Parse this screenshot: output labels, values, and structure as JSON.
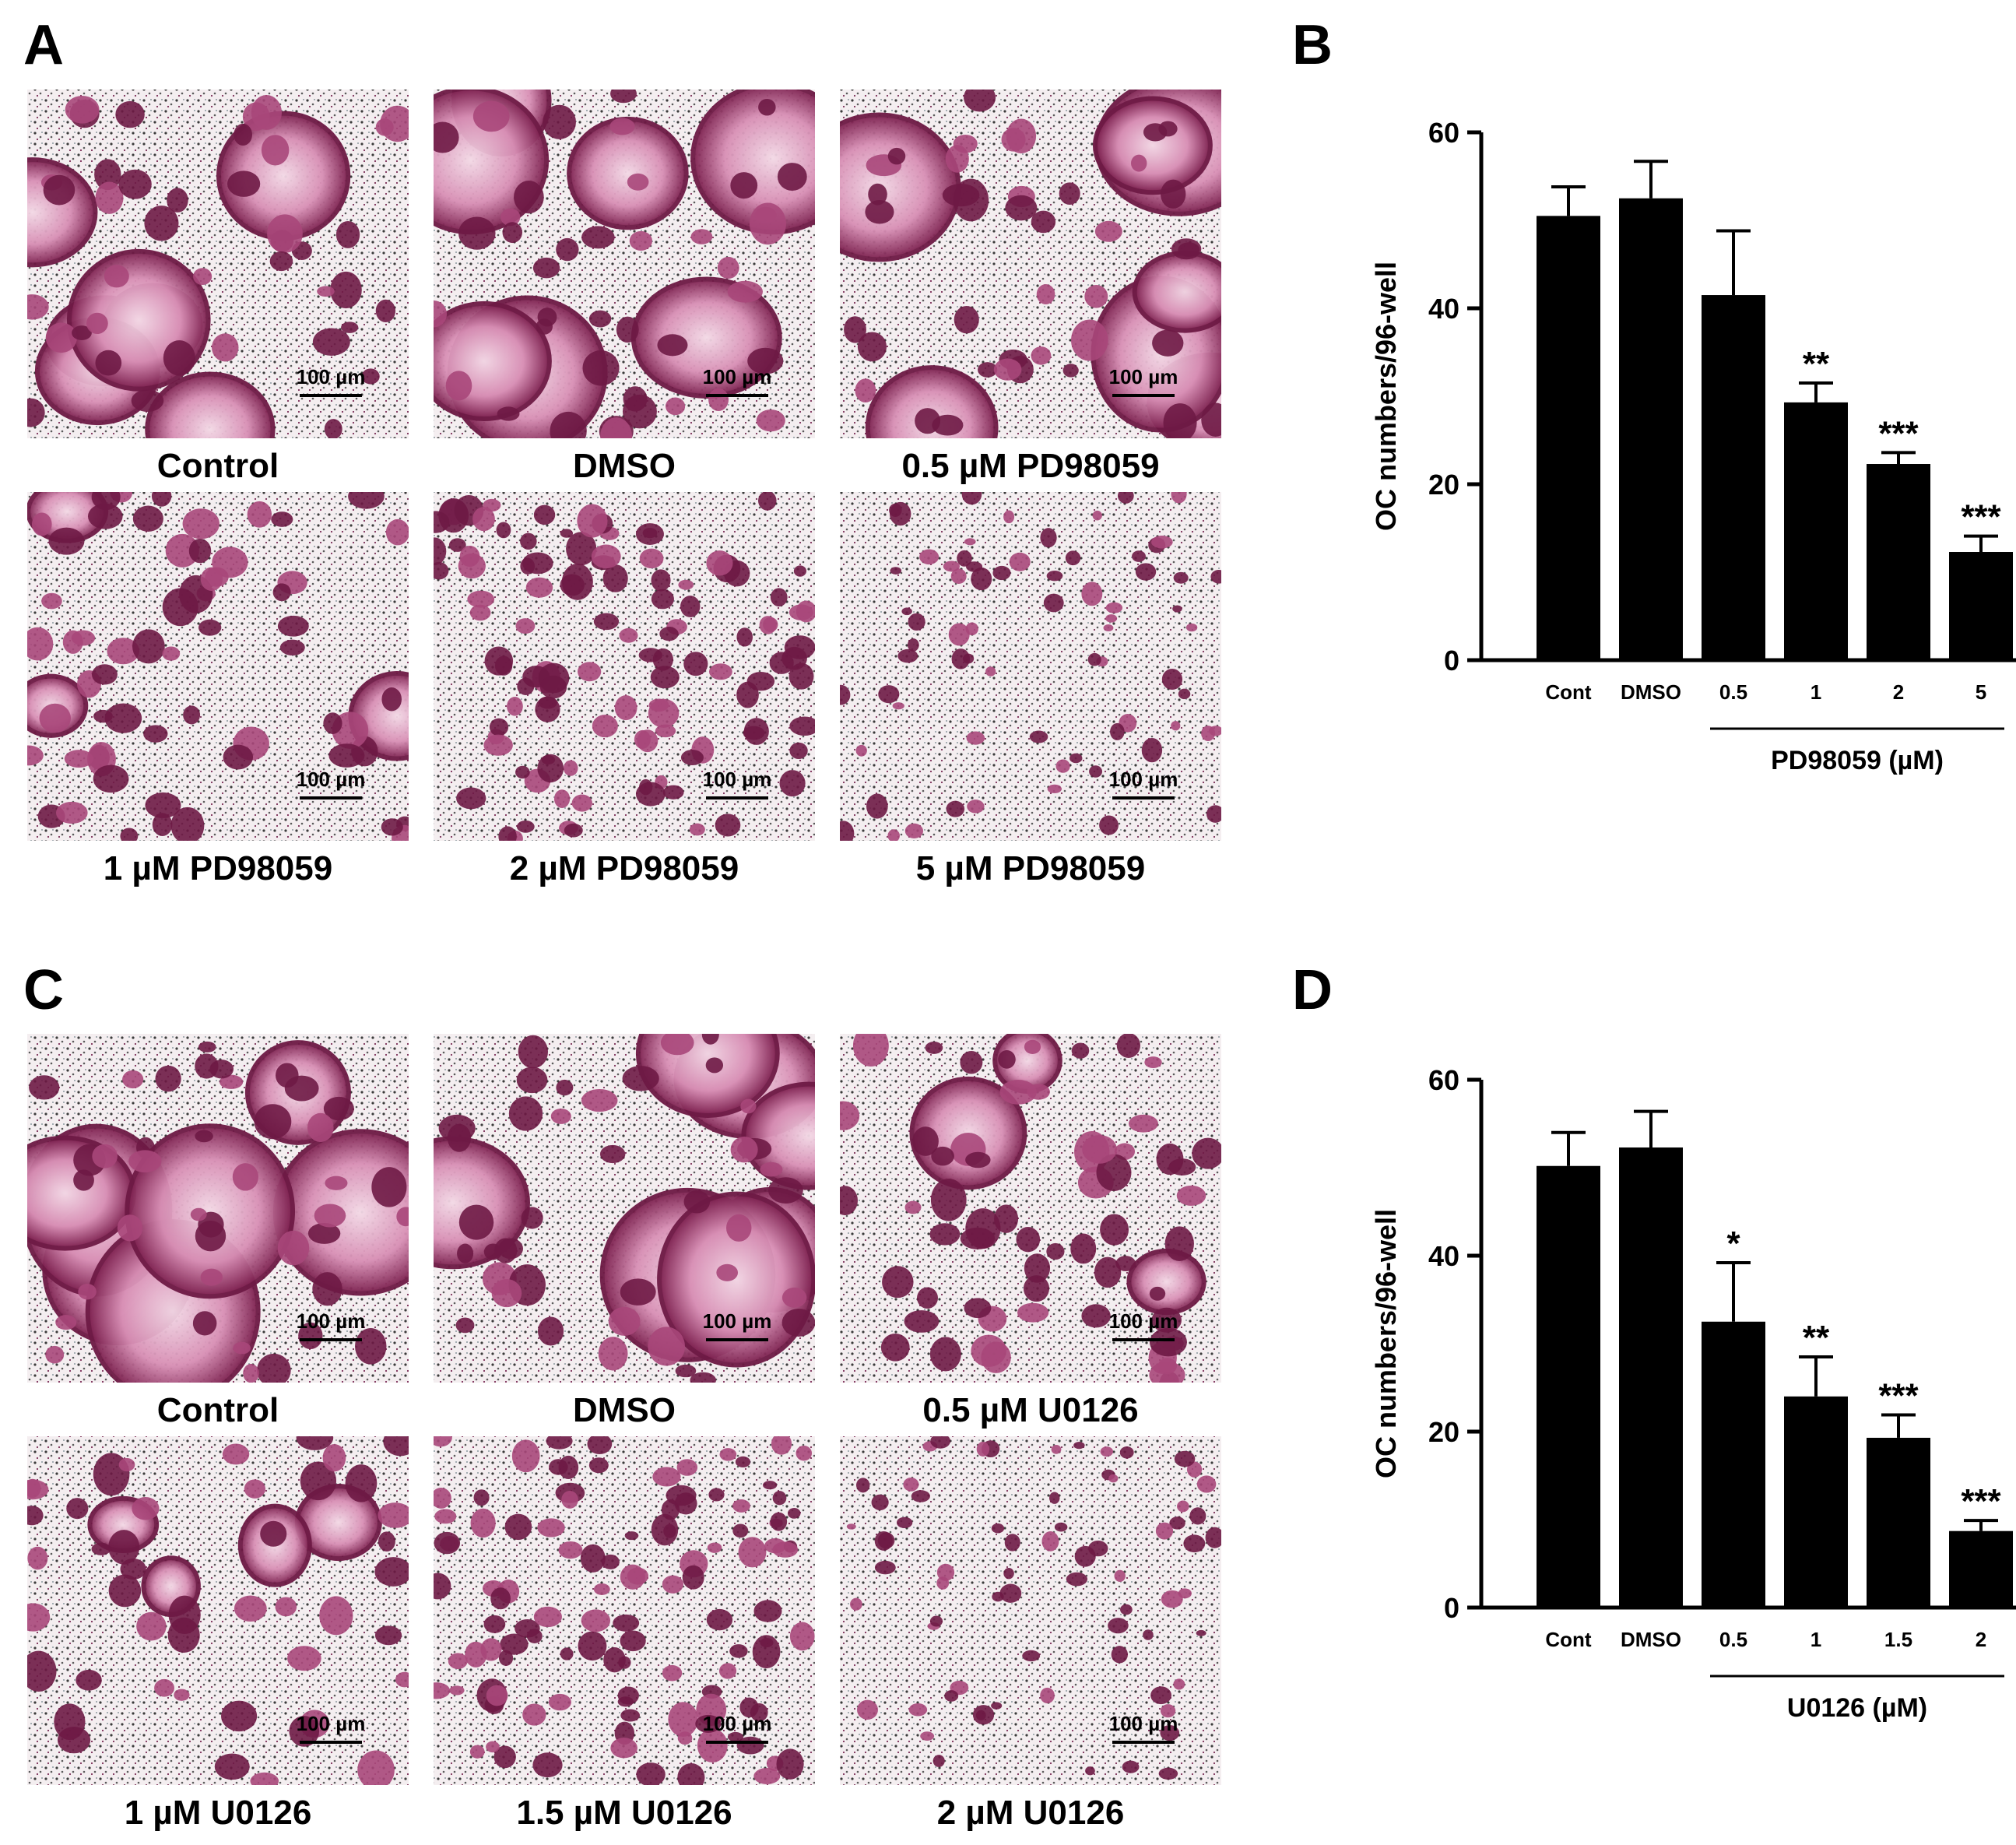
{
  "panels": {
    "A": "A",
    "B": "B",
    "C": "C",
    "D": "D"
  },
  "micrographs": {
    "A": [
      {
        "caption": "Control",
        "scale": "100 µm",
        "density": "large"
      },
      {
        "caption": "DMSO",
        "scale": "100 µm",
        "density": "large"
      },
      {
        "caption": "0.5 µM PD98059",
        "scale": "100 µm",
        "density": "large"
      },
      {
        "caption": "1 µM PD98059",
        "scale": "100 µm",
        "density": "medium"
      },
      {
        "caption": "2 µM PD98059",
        "scale": "100 µm",
        "density": "small"
      },
      {
        "caption": "5 µM PD98059",
        "scale": "100 µm",
        "density": "tiny"
      }
    ],
    "C": [
      {
        "caption": "Control",
        "scale": "100 µm",
        "density": "large"
      },
      {
        "caption": "DMSO",
        "scale": "100 µm",
        "density": "large"
      },
      {
        "caption": "0.5 µM U0126",
        "scale": "100 µm",
        "density": "medium"
      },
      {
        "caption": "1 µM U0126",
        "scale": "100 µm",
        "density": "sparse"
      },
      {
        "caption": "1.5 µM U0126",
        "scale": "100 µm",
        "density": "small"
      },
      {
        "caption": "2 µM U0126",
        "scale": "100 µm",
        "density": "tiny"
      }
    ]
  },
  "colors": {
    "stain_dark": "#6e1a45",
    "stain_mid": "#a8477a",
    "stain_light": "#e9b9d4",
    "bar": "#000000"
  },
  "chart_data": [
    {
      "panel": "B",
      "type": "bar",
      "ylabel": "OC numbers/96-well",
      "ylim": [
        0,
        60
      ],
      "yticks": [
        0,
        20,
        40,
        60
      ],
      "categories": [
        "Cont",
        "DMSO",
        "0.5",
        "1",
        "2",
        "5"
      ],
      "values": [
        50.5,
        52.5,
        41.5,
        29.3,
        22.3,
        12.3
      ],
      "errors": [
        3.3,
        4.2,
        7.3,
        2.2,
        1.3,
        1.8
      ],
      "significance": [
        "",
        "",
        "",
        "**",
        "***",
        "***"
      ],
      "group_label": "PD98059 (µM)",
      "group_span": [
        2,
        5
      ]
    },
    {
      "panel": "D",
      "type": "bar",
      "ylabel": "OC numbers/96-well",
      "ylim": [
        0,
        60
      ],
      "yticks": [
        0,
        20,
        40,
        60
      ],
      "categories": [
        "Cont",
        "DMSO",
        "0.5",
        "1",
        "1.5",
        "2"
      ],
      "values": [
        50.2,
        52.3,
        32.5,
        24.0,
        19.3,
        8.7
      ],
      "errors": [
        3.8,
        4.1,
        6.7,
        4.5,
        2.6,
        1.2
      ],
      "significance": [
        "",
        "",
        "*",
        "**",
        "***",
        "***"
      ],
      "group_label": "U0126 (µM)",
      "group_span": [
        2,
        5
      ]
    }
  ]
}
